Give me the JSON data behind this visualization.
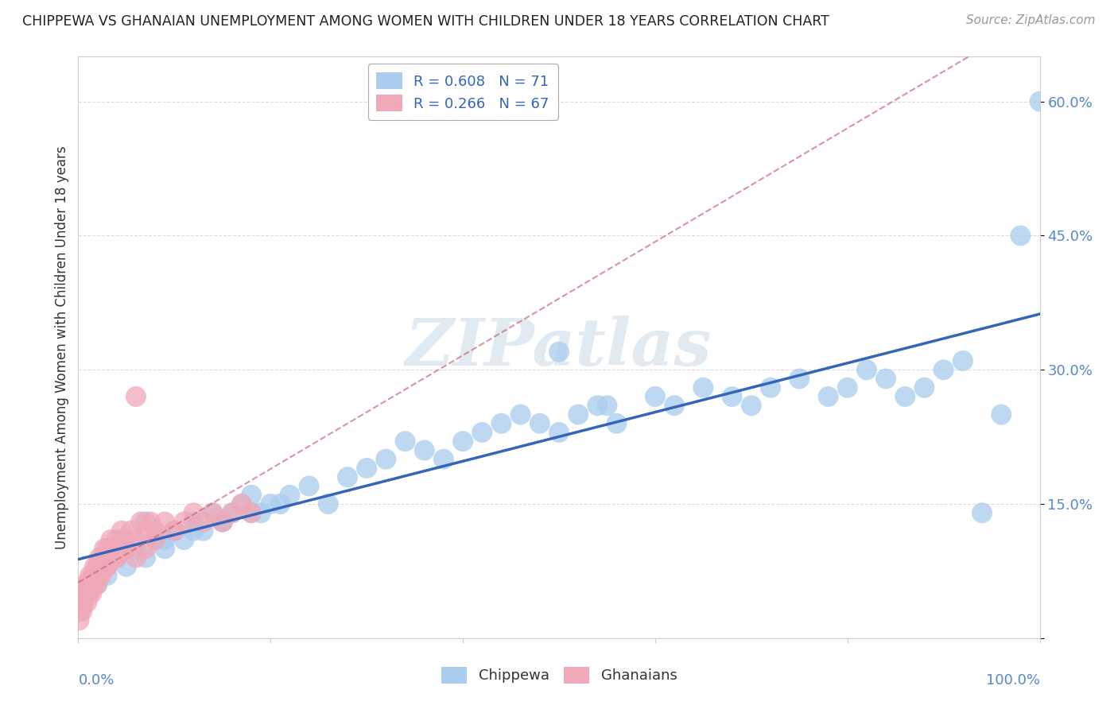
{
  "title": "CHIPPEWA VS GHANAIAN UNEMPLOYMENT AMONG WOMEN WITH CHILDREN UNDER 18 YEARS CORRELATION CHART",
  "source": "Source: ZipAtlas.com",
  "ylabel": "Unemployment Among Women with Children Under 18 years",
  "legend_entry1": "R = 0.608   N = 71",
  "legend_entry2": "R = 0.266   N = 67",
  "legend_label1": "Chippewa",
  "legend_label2": "Ghanaians",
  "chippewa_color": "#aaccee",
  "ghanaian_color": "#f0a8b8",
  "trend1_color": "#3366bb",
  "trend2_color": "#cc6677",
  "watermark": "ZIPatlas",
  "background_color": "#ffffff",
  "grid_color": "#cccccc",
  "ytick_vals": [
    0.0,
    0.15,
    0.3,
    0.45,
    0.6
  ],
  "ytick_labels": [
    "",
    "15.0%",
    "30.0%",
    "45.0%",
    "60.0%"
  ],
  "xlim": [
    0.0,
    1.0
  ],
  "ylim": [
    0.0,
    0.65
  ],
  "chippewa_x": [
    0.005,
    0.01,
    0.01,
    0.02,
    0.02,
    0.03,
    0.03,
    0.04,
    0.05,
    0.06,
    0.07,
    0.08,
    0.09,
    0.1,
    0.11,
    0.12,
    0.13,
    0.14,
    0.15,
    0.16,
    0.17,
    0.18,
    0.19,
    0.2,
    0.22,
    0.24,
    0.26,
    0.28,
    0.3,
    0.32,
    0.34,
    0.36,
    0.38,
    0.4,
    0.42,
    0.44,
    0.46,
    0.48,
    0.5,
    0.52,
    0.54,
    0.56,
    0.6,
    0.62,
    0.65,
    0.68,
    0.7,
    0.72,
    0.75,
    0.78,
    0.8,
    0.82,
    0.84,
    0.86,
    0.88,
    0.9,
    0.92,
    0.94,
    0.96,
    0.98,
    1.0,
    0.03,
    0.05,
    0.07,
    0.09,
    0.12,
    0.15,
    0.18,
    0.21,
    0.5,
    0.55
  ],
  "chippewa_y": [
    0.04,
    0.05,
    0.06,
    0.07,
    0.06,
    0.08,
    0.07,
    0.09,
    0.08,
    0.1,
    0.09,
    0.11,
    0.1,
    0.12,
    0.11,
    0.13,
    0.12,
    0.14,
    0.13,
    0.14,
    0.15,
    0.16,
    0.14,
    0.15,
    0.16,
    0.17,
    0.15,
    0.18,
    0.19,
    0.2,
    0.22,
    0.21,
    0.2,
    0.22,
    0.23,
    0.24,
    0.25,
    0.24,
    0.23,
    0.25,
    0.26,
    0.24,
    0.27,
    0.26,
    0.28,
    0.27,
    0.26,
    0.28,
    0.29,
    0.27,
    0.28,
    0.3,
    0.29,
    0.27,
    0.28,
    0.3,
    0.31,
    0.14,
    0.25,
    0.45,
    0.6,
    0.09,
    0.1,
    0.13,
    0.11,
    0.12,
    0.13,
    0.14,
    0.15,
    0.32,
    0.26
  ],
  "ghanaian_x": [
    0.001,
    0.002,
    0.003,
    0.004,
    0.005,
    0.006,
    0.007,
    0.008,
    0.009,
    0.01,
    0.011,
    0.012,
    0.013,
    0.014,
    0.015,
    0.016,
    0.017,
    0.018,
    0.019,
    0.02,
    0.021,
    0.022,
    0.023,
    0.024,
    0.025,
    0.026,
    0.027,
    0.028,
    0.029,
    0.03,
    0.032,
    0.034,
    0.036,
    0.038,
    0.04,
    0.042,
    0.045,
    0.048,
    0.05,
    0.055,
    0.06,
    0.065,
    0.07,
    0.075,
    0.08,
    0.09,
    0.1,
    0.11,
    0.12,
    0.13,
    0.14,
    0.15,
    0.16,
    0.17,
    0.18,
    0.02,
    0.03,
    0.04,
    0.05,
    0.06,
    0.07,
    0.08,
    0.005,
    0.01,
    0.015,
    0.02,
    0.06
  ],
  "ghanaian_y": [
    0.02,
    0.03,
    0.04,
    0.03,
    0.05,
    0.04,
    0.06,
    0.05,
    0.04,
    0.06,
    0.05,
    0.07,
    0.06,
    0.05,
    0.07,
    0.06,
    0.08,
    0.07,
    0.06,
    0.08,
    0.07,
    0.09,
    0.08,
    0.07,
    0.09,
    0.08,
    0.1,
    0.09,
    0.08,
    0.1,
    0.09,
    0.11,
    0.1,
    0.09,
    0.11,
    0.1,
    0.12,
    0.11,
    0.1,
    0.12,
    0.11,
    0.13,
    0.12,
    0.13,
    0.12,
    0.13,
    0.12,
    0.13,
    0.14,
    0.13,
    0.14,
    0.13,
    0.14,
    0.15,
    0.14,
    0.07,
    0.08,
    0.09,
    0.1,
    0.09,
    0.1,
    0.11,
    0.05,
    0.06,
    0.07,
    0.08,
    0.27
  ]
}
